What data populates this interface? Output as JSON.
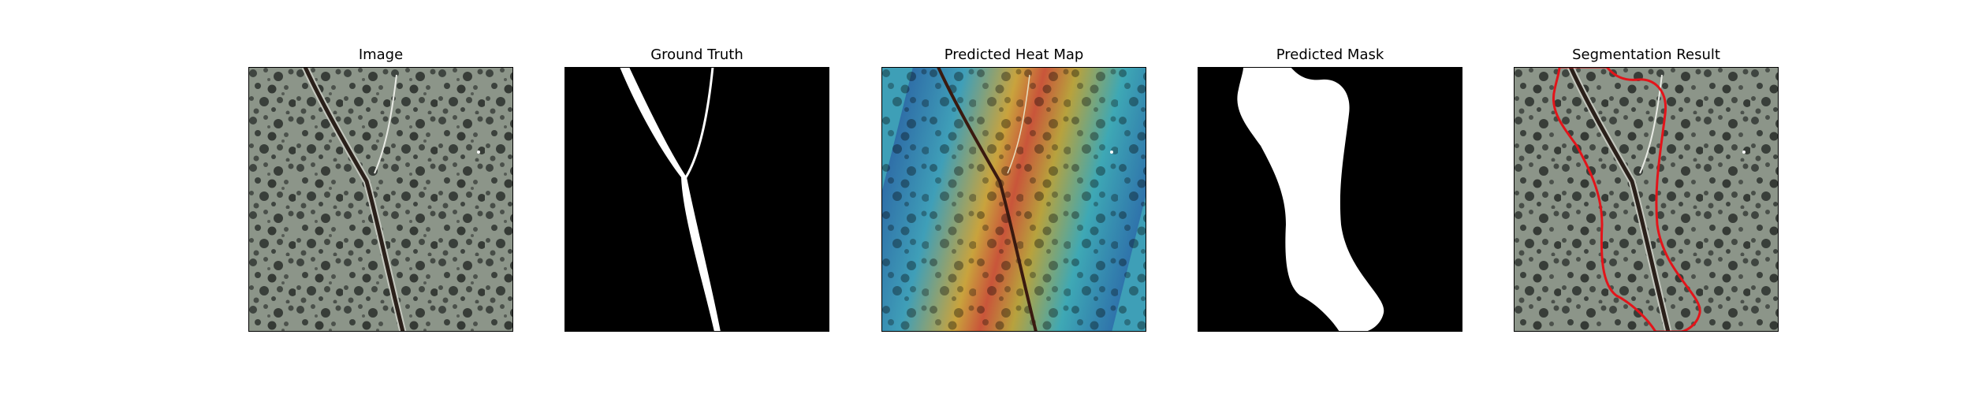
{
  "panels": [
    {
      "title": "Image"
    },
    {
      "title": "Ground Truth"
    },
    {
      "title": "Predicted Heat Map"
    },
    {
      "title": "Predicted Mask"
    },
    {
      "title": "Segmentation Result"
    }
  ],
  "colors": {
    "background": "#ffffff",
    "texture_base": "#8a9388",
    "texture_spot": "#3c423d",
    "crack": "#2a201a",
    "mask_fg": "#ffffff",
    "mask_bg": "#000000",
    "contour": "#e3141a"
  }
}
